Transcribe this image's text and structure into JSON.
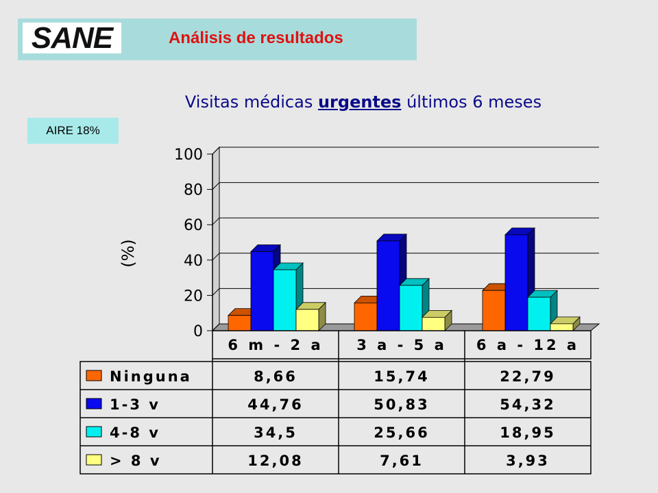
{
  "header": {
    "logo_text": "SANE",
    "title": "Análisis de resultados"
  },
  "chart_title": {
    "before": "Visitas médicas ",
    "emphasis": "urgentes",
    "after": " últimos 6 meses"
  },
  "badge": "AIRE 18%",
  "colors": {
    "background": "#e8e8e8",
    "header_bg": "#a8dcdc",
    "header_title": "#e01010",
    "chart_title": "#0a0a8a",
    "badge_bg": "#a8eaea"
  },
  "chart_data": {
    "type": "bar",
    "ylabel": "(%)",
    "ylim": [
      0,
      100
    ],
    "yticks": [
      0,
      20,
      40,
      60,
      80,
      100
    ],
    "grid": true,
    "legend": "data-table",
    "categories": [
      "6 m - 2 a",
      "3 a - 5 a",
      "6 a - 12 a"
    ],
    "series": [
      {
        "name": "Ninguna",
        "color": "#ff6600",
        "values": [
          8.66,
          15.74,
          22.79
        ],
        "labels": [
          "8,66",
          "15,74",
          "22,79"
        ]
      },
      {
        "name": "1-3 v",
        "color": "#0a0aee",
        "values": [
          44.76,
          50.83,
          54.32
        ],
        "labels": [
          "44,76",
          "50,83",
          "54,32"
        ]
      },
      {
        "name": "4-8 v",
        "color": "#00f0f0",
        "values": [
          34.5,
          25.66,
          18.95
        ],
        "labels": [
          "34,5",
          "25,66",
          "18,95"
        ]
      },
      {
        "name": "> 8 v",
        "color": "#ffff80",
        "values": [
          12.08,
          7.61,
          3.93
        ],
        "labels": [
          "12,08",
          "7,61",
          "3,93"
        ]
      }
    ]
  }
}
